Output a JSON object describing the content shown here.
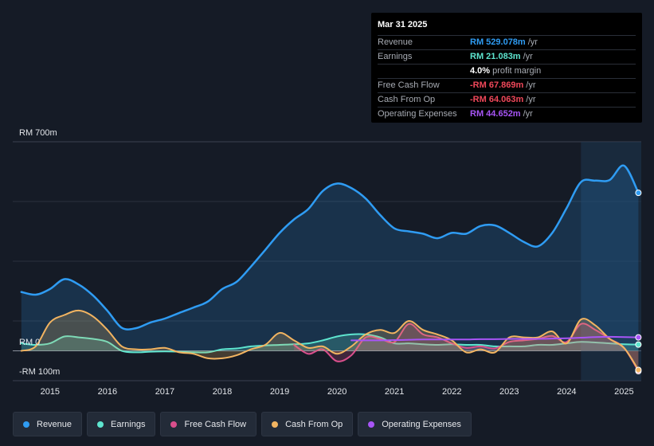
{
  "tooltip": {
    "date": "Mar 31 2025",
    "rows": [
      {
        "label": "Revenue",
        "value": "RM 529.078m",
        "unit": "/yr",
        "color": "#2f9cf3"
      },
      {
        "label": "Earnings",
        "value": "RM 21.083m",
        "unit": "/yr",
        "color": "#5ee5cf"
      },
      {
        "label": "",
        "value": "4.0%",
        "unit": "profit margin",
        "color": "#ffffff"
      },
      {
        "label": "Free Cash Flow",
        "value": "-RM 67.869m",
        "unit": "/yr",
        "color": "#f0485a"
      },
      {
        "label": "Cash From Op",
        "value": "-RM 64.063m",
        "unit": "/yr",
        "color": "#f0485a"
      },
      {
        "label": "Operating Expenses",
        "value": "RM 44.652m",
        "unit": "/yr",
        "color": "#a855f7"
      }
    ]
  },
  "legend": [
    {
      "label": "Revenue",
      "color": "#2f9cf3"
    },
    {
      "label": "Earnings",
      "color": "#5ee5cf"
    },
    {
      "label": "Free Cash Flow",
      "color": "#d94f8c"
    },
    {
      "label": "Cash From Op",
      "color": "#f2b461"
    },
    {
      "label": "Operating Expenses",
      "color": "#a855f7"
    }
  ],
  "chart_data": {
    "type": "area",
    "title": "",
    "xlabel": "",
    "ylabel": "",
    "y_labels": [
      "RM 700m",
      "RM 0",
      "-RM 100m"
    ],
    "ylim": [
      -100,
      700
    ],
    "xlim": [
      2014.35,
      2025.3
    ],
    "x_ticks": [
      2015,
      2016,
      2017,
      2018,
      2019,
      2020,
      2021,
      2022,
      2023,
      2024,
      2025
    ],
    "x_tick_labels": [
      "2015",
      "2016",
      "2017",
      "2018",
      "2019",
      "2020",
      "2021",
      "2022",
      "2023",
      "2024",
      "2025"
    ],
    "highlight_from": 2024.25,
    "series": [
      {
        "name": "Revenue",
        "color": "#2f9cf3",
        "fill": true,
        "x": [
          2014.5,
          2014.75,
          2015.0,
          2015.25,
          2015.5,
          2015.75,
          2016.0,
          2016.25,
          2016.5,
          2016.75,
          2017.0,
          2017.25,
          2017.5,
          2017.75,
          2018.0,
          2018.25,
          2018.5,
          2018.75,
          2019.0,
          2019.25,
          2019.5,
          2019.75,
          2020.0,
          2020.25,
          2020.5,
          2020.75,
          2021.0,
          2021.25,
          2021.5,
          2021.75,
          2022.0,
          2022.25,
          2022.5,
          2022.75,
          2023.0,
          2023.25,
          2023.5,
          2023.75,
          2024.0,
          2024.25,
          2024.5,
          2024.75,
          2025.0,
          2025.25
        ],
        "values": [
          197,
          188,
          207,
          240,
          222,
          185,
          134,
          77,
          76,
          95,
          108,
          127,
          145,
          165,
          207,
          231,
          282,
          338,
          395,
          440,
          475,
          535,
          560,
          545,
          510,
          455,
          410,
          400,
          392,
          377,
          395,
          392,
          418,
          420,
          395,
          365,
          350,
          395,
          478,
          565,
          570,
          572,
          620,
          529
        ]
      },
      {
        "name": "Earnings",
        "color": "#5ee5cf",
        "fill": true,
        "x": [
          2014.5,
          2014.75,
          2015.0,
          2015.25,
          2015.5,
          2015.75,
          2016.0,
          2016.25,
          2016.5,
          2016.75,
          2017.0,
          2017.25,
          2017.5,
          2017.75,
          2018.0,
          2018.25,
          2018.5,
          2018.75,
          2019.0,
          2019.25,
          2019.5,
          2019.75,
          2020.0,
          2020.25,
          2020.5,
          2020.75,
          2021.0,
          2021.25,
          2021.5,
          2021.75,
          2022.0,
          2022.25,
          2022.5,
          2022.75,
          2023.0,
          2023.25,
          2023.5,
          2023.75,
          2024.0,
          2024.25,
          2024.5,
          2024.75,
          2025.0,
          2025.25
        ],
        "values": [
          25,
          20,
          25,
          48,
          45,
          40,
          30,
          0,
          -5,
          -3,
          -2,
          -3,
          -5,
          -5,
          5,
          8,
          15,
          18,
          20,
          22,
          25,
          35,
          48,
          55,
          55,
          45,
          25,
          25,
          22,
          20,
          22,
          20,
          20,
          15,
          15,
          15,
          20,
          20,
          25,
          30,
          28,
          25,
          22,
          21
        ]
      },
      {
        "name": "Free Cash Flow",
        "color": "#d94f8c",
        "fill": true,
        "x": [
          2019.25,
          2019.5,
          2019.75,
          2020.0,
          2020.25,
          2020.5,
          2020.75,
          2021.0,
          2021.25,
          2021.5,
          2021.75,
          2022.0,
          2022.25,
          2022.5,
          2022.75,
          2023.0,
          2023.25,
          2023.5,
          2023.75,
          2024.0,
          2024.25,
          2024.5,
          2024.75,
          2025.0,
          2025.25
        ],
        "values": [
          20,
          -10,
          5,
          -35,
          -15,
          45,
          40,
          30,
          90,
          55,
          45,
          25,
          10,
          15,
          8,
          30,
          35,
          40,
          50,
          30,
          90,
          70,
          40,
          10,
          -68
        ]
      },
      {
        "name": "Cash From Op",
        "color": "#f2b461",
        "fill": true,
        "x": [
          2014.5,
          2014.75,
          2015.0,
          2015.25,
          2015.5,
          2015.75,
          2016.0,
          2016.25,
          2016.5,
          2016.75,
          2017.0,
          2017.25,
          2017.5,
          2017.75,
          2018.0,
          2018.25,
          2018.5,
          2018.75,
          2019.0,
          2019.25,
          2019.5,
          2019.75,
          2020.0,
          2020.25,
          2020.5,
          2020.75,
          2021.0,
          2021.25,
          2021.5,
          2021.75,
          2022.0,
          2022.25,
          2022.5,
          2022.75,
          2023.0,
          2023.25,
          2023.5,
          2023.75,
          2024.0,
          2024.25,
          2024.5,
          2024.75,
          2025.0,
          2025.25
        ],
        "values": [
          0,
          15,
          95,
          120,
          135,
          115,
          70,
          15,
          5,
          5,
          10,
          -5,
          -10,
          -25,
          -25,
          -15,
          5,
          20,
          60,
          35,
          10,
          15,
          -10,
          15,
          55,
          70,
          60,
          100,
          70,
          55,
          35,
          -5,
          5,
          -5,
          45,
          45,
          45,
          65,
          25,
          105,
          85,
          40,
          10,
          -64
        ]
      },
      {
        "name": "Operating Expenses",
        "color": "#a855f7",
        "fill": false,
        "x": [
          2020.25,
          2020.5,
          2020.75,
          2021.0,
          2021.25,
          2021.5,
          2021.75,
          2022.0,
          2022.25,
          2022.5,
          2022.75,
          2023.0,
          2023.25,
          2023.5,
          2023.75,
          2024.0,
          2024.25,
          2024.5,
          2024.75,
          2025.0,
          2025.25
        ],
        "values": [
          35,
          35,
          35,
          36,
          37,
          38,
          38,
          38,
          38,
          39,
          39,
          40,
          40,
          40,
          41,
          42,
          44,
          46,
          47,
          46,
          45
        ]
      }
    ]
  }
}
